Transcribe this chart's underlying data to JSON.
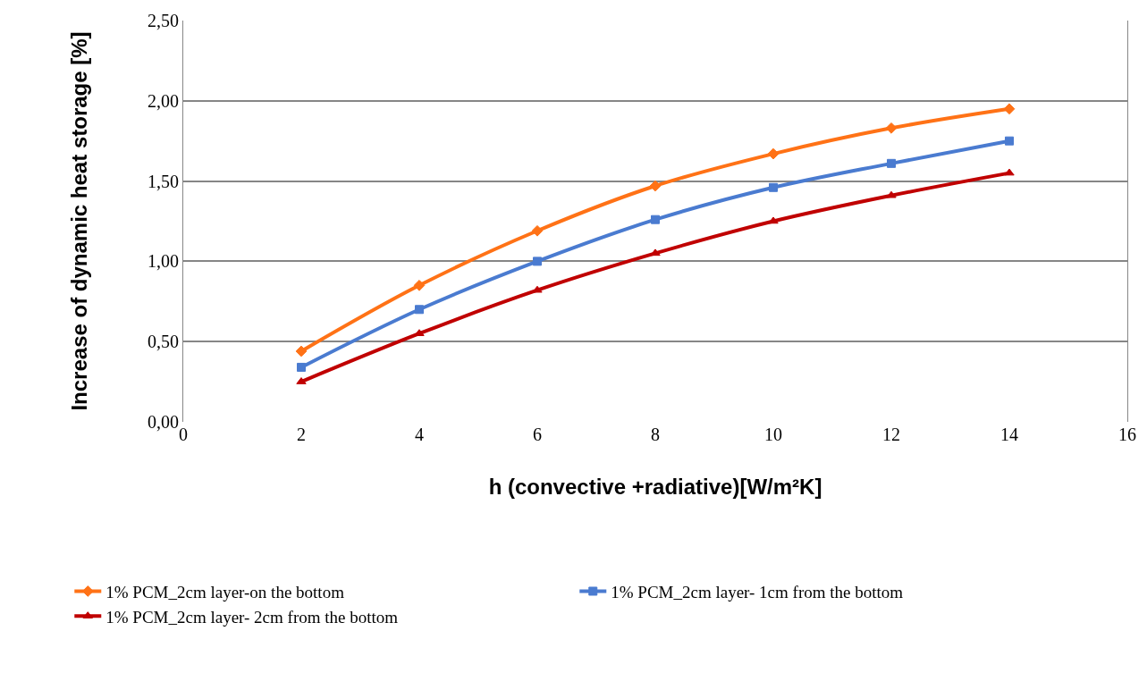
{
  "chart_data": {
    "type": "line",
    "xlabel": "h (convective +radiative)[W/m²K]",
    "ylabel": "Increase of dynamic heat storage [%]",
    "x": [
      2,
      4,
      6,
      8,
      10,
      12,
      14
    ],
    "series": [
      {
        "name": "1% PCM_2cm layer-on the bottom",
        "color": "#ff7216",
        "marker": "diamond",
        "values": [
          0.44,
          0.85,
          1.19,
          1.47,
          1.67,
          1.83,
          1.95
        ]
      },
      {
        "name": "1% PCM_2cm layer- 1cm from the bottom",
        "color": "#4a7bd0",
        "marker": "square",
        "values": [
          0.34,
          0.7,
          1.0,
          1.26,
          1.46,
          1.61,
          1.75
        ]
      },
      {
        "name": "1% PCM_2cm layer- 2cm from the bottom",
        "color": "#c00000",
        "marker": "triangle",
        "values": [
          0.25,
          0.55,
          0.82,
          1.05,
          1.25,
          1.41,
          1.55
        ]
      }
    ],
    "xlim": [
      0,
      16
    ],
    "xticks": [
      0,
      2,
      4,
      6,
      8,
      10,
      12,
      14,
      16
    ],
    "ylim": [
      0,
      2.5
    ],
    "yticks": [
      {
        "value": 0,
        "label": "0,00"
      },
      {
        "value": 0.5,
        "label": "0,50"
      },
      {
        "value": 1,
        "label": "1,00"
      },
      {
        "value": 1.5,
        "label": "1,50"
      },
      {
        "value": 2,
        "label": "2,00"
      },
      {
        "value": 2.5,
        "label": "2,50"
      }
    ],
    "grid": "y",
    "legend": "bottom",
    "line_style": "solid"
  }
}
